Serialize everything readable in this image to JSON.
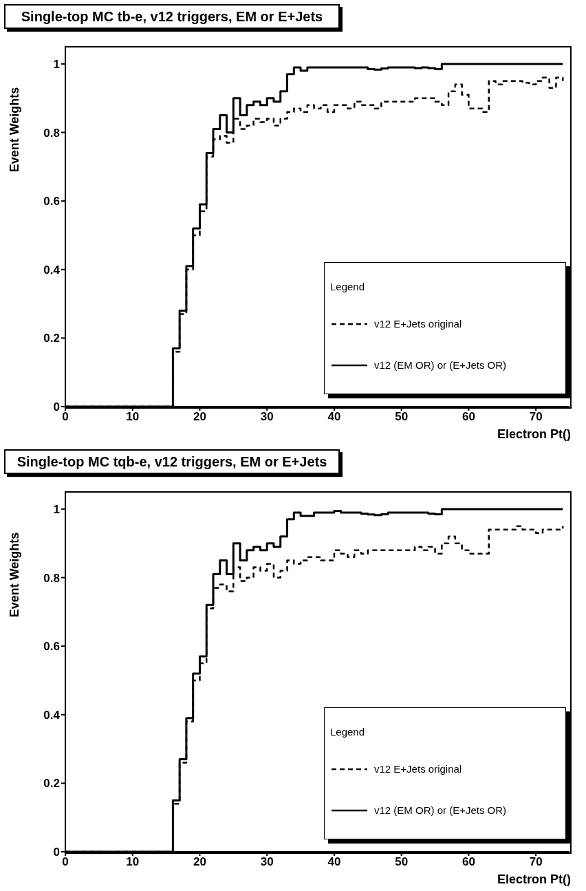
{
  "chart_data": [
    {
      "type": "step",
      "title": "Single-top MC tb-e, v12 triggers, EM or E+Jets",
      "xlabel": "Electron Pt()",
      "ylabel": "Event Weights",
      "legend_title": "Legend",
      "legend": "bottom right",
      "grid": false,
      "xlim": [
        0,
        75
      ],
      "xticks": [
        0,
        10,
        20,
        30,
        40,
        50,
        60,
        70
      ],
      "ylim": [
        0,
        1.05
      ],
      "yticks": [
        0,
        0.2,
        0.4,
        0.6,
        0.8,
        1
      ],
      "x": [
        0,
        1,
        2,
        3,
        4,
        5,
        6,
        7,
        8,
        9,
        10,
        11,
        12,
        13,
        14,
        15,
        16,
        17,
        18,
        19,
        20,
        21,
        22,
        23,
        24,
        25,
        26,
        27,
        28,
        29,
        30,
        31,
        32,
        33,
        34,
        35,
        36,
        37,
        38,
        39,
        40,
        41,
        42,
        43,
        44,
        45,
        46,
        47,
        48,
        49,
        50,
        51,
        52,
        53,
        54,
        55,
        56,
        57,
        58,
        59,
        60,
        61,
        62,
        63,
        64,
        65,
        66,
        67,
        68,
        69,
        70,
        71,
        72,
        73,
        74
      ],
      "series": [
        {
          "name": "v12 E+Jets original",
          "color": "#000000",
          "line_style": "dashed",
          "values": [
            0,
            0,
            0,
            0,
            0,
            0,
            0,
            0,
            0,
            0,
            0,
            0,
            0,
            0,
            0,
            0,
            0.16,
            0.27,
            0.4,
            0.5,
            0.57,
            0.73,
            0.78,
            0.79,
            0.77,
            0.84,
            0.81,
            0.82,
            0.84,
            0.83,
            0.84,
            0.82,
            0.84,
            0.86,
            0.87,
            0.86,
            0.88,
            0.87,
            0.88,
            0.86,
            0.88,
            0.88,
            0.87,
            0.89,
            0.88,
            0.88,
            0.87,
            0.89,
            0.89,
            0.89,
            0.89,
            0.89,
            0.9,
            0.9,
            0.9,
            0.89,
            0.88,
            0.92,
            0.94,
            0.91,
            0.87,
            0.87,
            0.86,
            0.95,
            0.94,
            0.95,
            0.95,
            0.95,
            0.945,
            0.94,
            0.95,
            0.96,
            0.93,
            0.96,
            0.95
          ]
        },
        {
          "name": "v12 (EM OR) or (E+Jets OR)",
          "color": "#000000",
          "line_style": "solid",
          "values": [
            0,
            0,
            0,
            0,
            0,
            0,
            0,
            0,
            0,
            0,
            0,
            0,
            0,
            0,
            0,
            0,
            0.17,
            0.28,
            0.41,
            0.52,
            0.59,
            0.74,
            0.81,
            0.85,
            0.8,
            0.9,
            0.85,
            0.88,
            0.89,
            0.88,
            0.9,
            0.89,
            0.92,
            0.97,
            0.99,
            0.98,
            0.99,
            0.99,
            0.99,
            0.99,
            0.99,
            0.99,
            0.99,
            0.99,
            0.99,
            0.985,
            0.983,
            0.987,
            0.99,
            0.99,
            0.99,
            0.99,
            0.988,
            0.99,
            0.988,
            0.985,
            1,
            1,
            1,
            1,
            1,
            1,
            1,
            1,
            1,
            1,
            1,
            1,
            1,
            1,
            1,
            1,
            1,
            1,
            1
          ]
        }
      ]
    },
    {
      "type": "step",
      "title": "Single-top MC tqb-e, v12 triggers, EM or E+Jets",
      "xlabel": "Electron Pt()",
      "ylabel": "Event Weights",
      "legend_title": "Legend",
      "legend": "bottom right",
      "grid": false,
      "xlim": [
        0,
        75
      ],
      "xticks": [
        0,
        10,
        20,
        30,
        40,
        50,
        60,
        70
      ],
      "ylim": [
        0,
        1.05
      ],
      "yticks": [
        0,
        0.2,
        0.4,
        0.6,
        0.8,
        1
      ],
      "x": [
        0,
        1,
        2,
        3,
        4,
        5,
        6,
        7,
        8,
        9,
        10,
        11,
        12,
        13,
        14,
        15,
        16,
        17,
        18,
        19,
        20,
        21,
        22,
        23,
        24,
        25,
        26,
        27,
        28,
        29,
        30,
        31,
        32,
        33,
        34,
        35,
        36,
        37,
        38,
        39,
        40,
        41,
        42,
        43,
        44,
        45,
        46,
        47,
        48,
        49,
        50,
        51,
        52,
        53,
        54,
        55,
        56,
        57,
        58,
        59,
        60,
        61,
        62,
        63,
        64,
        65,
        66,
        67,
        68,
        69,
        70,
        71,
        72,
        73,
        74
      ],
      "series": [
        {
          "name": "v12 E+Jets original",
          "color": "#000000",
          "line_style": "dashed",
          "values": [
            0,
            0,
            0,
            0,
            0,
            0,
            0,
            0,
            0,
            0,
            0,
            0,
            0,
            0,
            0,
            0,
            0.14,
            0.26,
            0.38,
            0.5,
            0.55,
            0.71,
            0.77,
            0.78,
            0.76,
            0.83,
            0.79,
            0.8,
            0.83,
            0.82,
            0.84,
            0.8,
            0.82,
            0.85,
            0.84,
            0.85,
            0.86,
            0.86,
            0.85,
            0.85,
            0.88,
            0.87,
            0.86,
            0.88,
            0.87,
            0.88,
            0.88,
            0.88,
            0.88,
            0.88,
            0.88,
            0.88,
            0.89,
            0.88,
            0.89,
            0.87,
            0.9,
            0.92,
            0.9,
            0.88,
            0.87,
            0.87,
            0.87,
            0.94,
            0.94,
            0.94,
            0.94,
            0.95,
            0.94,
            0.94,
            0.93,
            0.94,
            0.94,
            0.94,
            0.95
          ]
        },
        {
          "name": "v12 (EM OR) or (E+Jets OR)",
          "color": "#000000",
          "line_style": "solid",
          "values": [
            0,
            0,
            0,
            0,
            0,
            0,
            0,
            0,
            0,
            0,
            0,
            0,
            0,
            0,
            0,
            0,
            0.15,
            0.27,
            0.39,
            0.52,
            0.57,
            0.72,
            0.81,
            0.85,
            0.81,
            0.9,
            0.85,
            0.88,
            0.89,
            0.88,
            0.9,
            0.89,
            0.92,
            0.97,
            0.99,
            0.98,
            0.98,
            0.99,
            0.99,
            0.99,
            0.995,
            0.99,
            0.99,
            0.99,
            0.987,
            0.984,
            0.982,
            0.985,
            0.99,
            0.99,
            0.99,
            0.99,
            0.99,
            0.99,
            0.987,
            0.985,
            1,
            1,
            1,
            1,
            1,
            1,
            1,
            1,
            1,
            1,
            1,
            1,
            1,
            1,
            1,
            1,
            1,
            1,
            1
          ]
        }
      ]
    }
  ]
}
